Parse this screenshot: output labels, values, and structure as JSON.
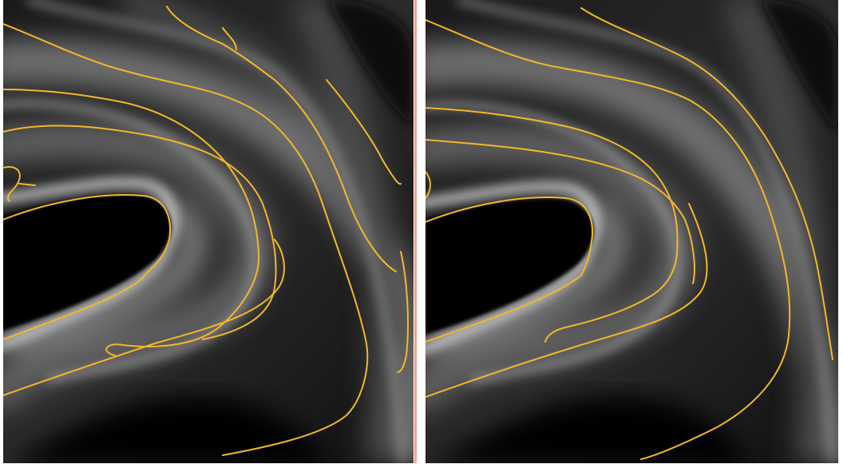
{
  "figure": {
    "panels": [
      {
        "id": "left",
        "contour_color": "#f3b72a"
      },
      {
        "id": "right",
        "contour_color": "#f3b72a"
      }
    ],
    "divider_color": "#f2a28a"
  }
}
